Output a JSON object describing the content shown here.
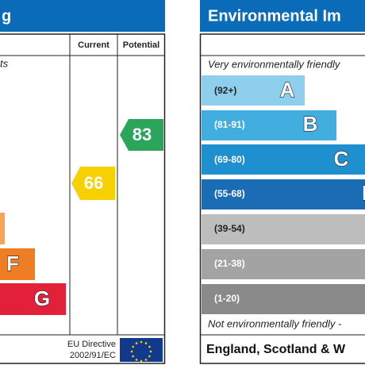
{
  "left_panel": {
    "title": "g",
    "columns": [
      "Current",
      "Potential"
    ],
    "note": "ts",
    "bands": [
      {
        "letter": "F"
      },
      {
        "letter": "G"
      }
    ],
    "current": 66,
    "potential": 83,
    "footer": {
      "line1": "EU Directive",
      "line2": "2002/91/EC"
    }
  },
  "right_panel": {
    "title": "Environmental Im",
    "top_note": "Very environmentally friendly",
    "bands": [
      {
        "range": "(92+)",
        "letter": "A"
      },
      {
        "range": "(81-91)",
        "letter": "B"
      },
      {
        "range": "(69-80)",
        "letter": "C"
      },
      {
        "range": "(55-68)",
        "letter": "D"
      },
      {
        "range": "(39-54)"
      },
      {
        "range": "(21-38)"
      },
      {
        "range": "(1-20)"
      }
    ],
    "bottom_note": "Not environmentally friendly -",
    "footer": "England, Scotland & W"
  }
}
